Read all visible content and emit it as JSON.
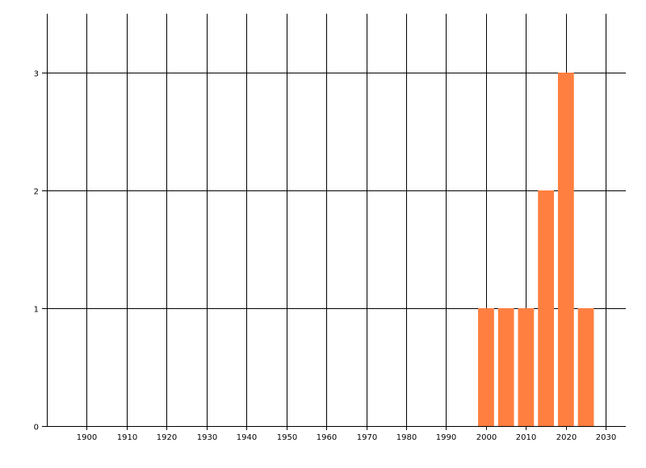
{
  "chart_data": {
    "type": "bar",
    "x": [
      2000,
      2005,
      2010,
      2015,
      2020,
      2025
    ],
    "values": [
      1,
      1,
      1,
      2,
      3,
      1
    ],
    "bar_width_years": 4,
    "xlim": [
      1890,
      2035
    ],
    "ylim": [
      0,
      3.5
    ],
    "xticks": [
      1900,
      1910,
      1920,
      1930,
      1940,
      1950,
      1960,
      1970,
      1980,
      1990,
      2000,
      2010,
      2020,
      2030
    ],
    "yticks": [
      0,
      1,
      2,
      3
    ],
    "grid": true,
    "legend": "none",
    "title": "",
    "xlabel": "",
    "ylabel": "",
    "colors": {
      "bar": "#FF7F40",
      "grid": "#000000"
    }
  }
}
